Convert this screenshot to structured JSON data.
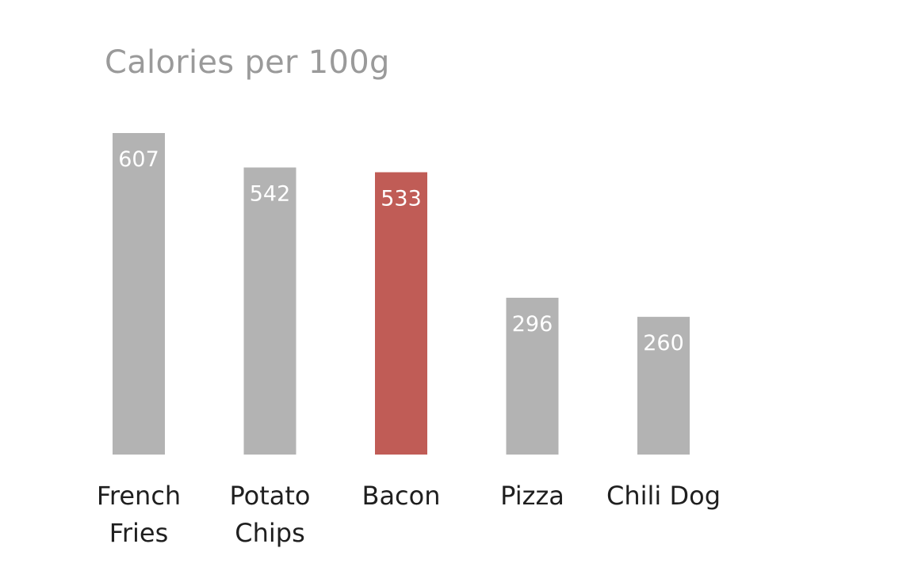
{
  "chart_data": {
    "type": "bar",
    "title": "Calories per 100g",
    "categories": [
      [
        "French",
        "Fries"
      ],
      [
        "Potato",
        "Chips"
      ],
      [
        "Bacon"
      ],
      [
        "Pizza"
      ],
      [
        "Chili Dog"
      ]
    ],
    "values": [
      607,
      542,
      533,
      296,
      260
    ],
    "value_labels": [
      "607",
      "542",
      "533",
      "296",
      "260"
    ],
    "highlight_index": 2,
    "colors": {
      "default": "#b3b3b3",
      "highlight": "#c05c56",
      "title": "#9a9a9a",
      "value_label": "#ffffff",
      "category_label": "#1f1f1f"
    },
    "xlabel": "",
    "ylabel": "",
    "ylim": [
      0,
      607
    ],
    "grid": false,
    "legend": "none"
  }
}
